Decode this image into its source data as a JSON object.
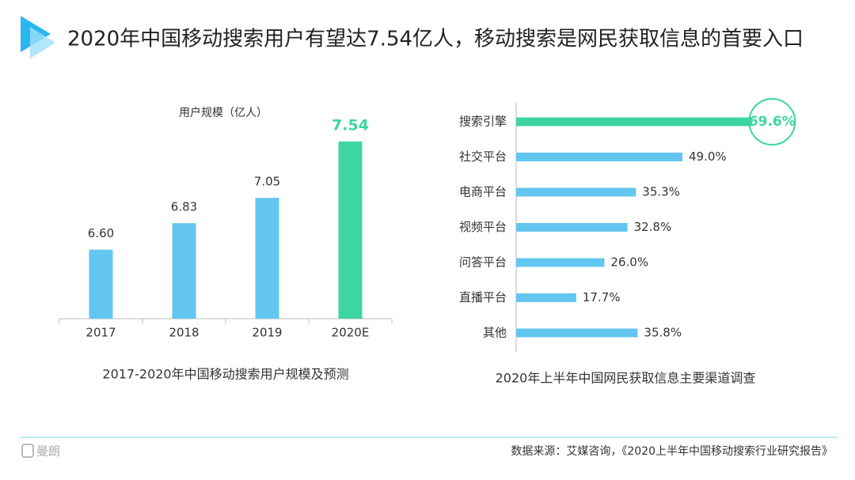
{
  "header": {
    "title": "2020年中国移动搜索用户有望达7.54亿人，移动搜索是网民获取信息的首要入口"
  },
  "chart_data": [
    {
      "type": "bar",
      "title": "2017-2020年中国移动搜索用户规模及预测",
      "ylabel": "用户规模（亿人）",
      "categories": [
        "2017",
        "2018",
        "2019",
        "2020E"
      ],
      "values": [
        6.6,
        6.83,
        7.05,
        7.54
      ],
      "value_labels": [
        "6.60",
        "6.83",
        "7.05",
        "7.54"
      ],
      "colors": [
        "#63c6f0",
        "#63c6f0",
        "#63c6f0",
        "#3dd5a3"
      ],
      "ylim": [
        6,
        8
      ],
      "grid": false
    },
    {
      "type": "barh",
      "title": "2020年上半年中国网民获取信息主要渠道调查",
      "categories": [
        "搜索引擎",
        "社交平台",
        "电商平台",
        "视频平台",
        "问答平台",
        "直播平台",
        "其他"
      ],
      "values": [
        69.6,
        49.0,
        35.3,
        32.8,
        26.0,
        17.7,
        35.8
      ],
      "value_labels": [
        "69.6%",
        "49.0%",
        "35.3%",
        "32.8%",
        "26.0%",
        "17.7%",
        "35.8%"
      ],
      "colors": [
        "#3dd5a3",
        "#63c6f0",
        "#63c6f0",
        "#63c6f0",
        "#63c6f0",
        "#63c6f0",
        "#63c6f0"
      ],
      "highlight_index": 0,
      "xlim": [
        0,
        70
      ],
      "grid": false
    }
  ],
  "footer": {
    "source": "数据来源：艾媒咨询，《2020上半年中国移动搜索行业研究报告》",
    "logo": "曼朗"
  }
}
